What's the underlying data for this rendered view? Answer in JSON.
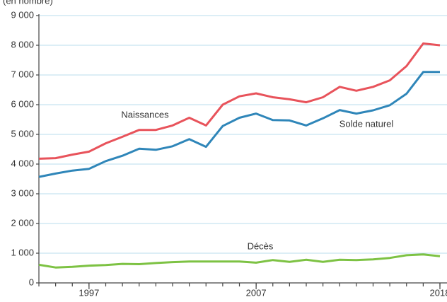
{
  "chart_data": {
    "type": "line",
    "subtitle": "(en nombre)",
    "x": [
      1994,
      1995,
      1996,
      1997,
      1998,
      1999,
      2000,
      2001,
      2002,
      2003,
      2004,
      2005,
      2006,
      2007,
      2008,
      2009,
      2010,
      2011,
      2012,
      2013,
      2014,
      2015,
      2016,
      2017,
      2018
    ],
    "series": [
      {
        "name": "Naissances",
        "color": "#e8535b",
        "values": [
          4180,
          4200,
          4320,
          4420,
          4700,
          4920,
          5150,
          5150,
          5300,
          5560,
          5300,
          6000,
          6280,
          6380,
          6250,
          6180,
          6080,
          6250,
          6600,
          6470,
          6600,
          6820,
          7300,
          8060,
          8000
        ]
      },
      {
        "name": "Solde naturel",
        "color": "#2f86b9",
        "values": [
          3570,
          3680,
          3780,
          3840,
          4100,
          4280,
          4520,
          4480,
          4600,
          4840,
          4580,
          5280,
          5560,
          5700,
          5480,
          5470,
          5300,
          5540,
          5820,
          5700,
          5810,
          5980,
          6370,
          7100,
          7100
        ]
      },
      {
        "name": "Décès",
        "color": "#7dc243",
        "values": [
          610,
          520,
          540,
          580,
          600,
          640,
          630,
          670,
          700,
          720,
          720,
          720,
          720,
          680,
          770,
          710,
          780,
          710,
          780,
          770,
          790,
          840,
          930,
          960,
          900
        ]
      }
    ],
    "xlim": [
      1994,
      2018
    ],
    "xticks": [
      1997,
      2007,
      2018
    ],
    "ylim": [
      0,
      9000
    ],
    "yticks": [
      0,
      {
        "value": 1000,
        "label": "1 000"
      },
      {
        "value": 2000,
        "label": "2 000"
      },
      {
        "value": 3000,
        "label": "3 000"
      },
      {
        "value": 4000,
        "label": "4 000"
      },
      {
        "value": 5000,
        "label": "5 000"
      },
      {
        "value": 6000,
        "label": "6 000"
      },
      {
        "value": 7000,
        "label": "7 000"
      },
      {
        "value": 8000,
        "label": "8 000"
      },
      {
        "value": 9000,
        "label": "9 000"
      }
    ],
    "grid": true
  }
}
